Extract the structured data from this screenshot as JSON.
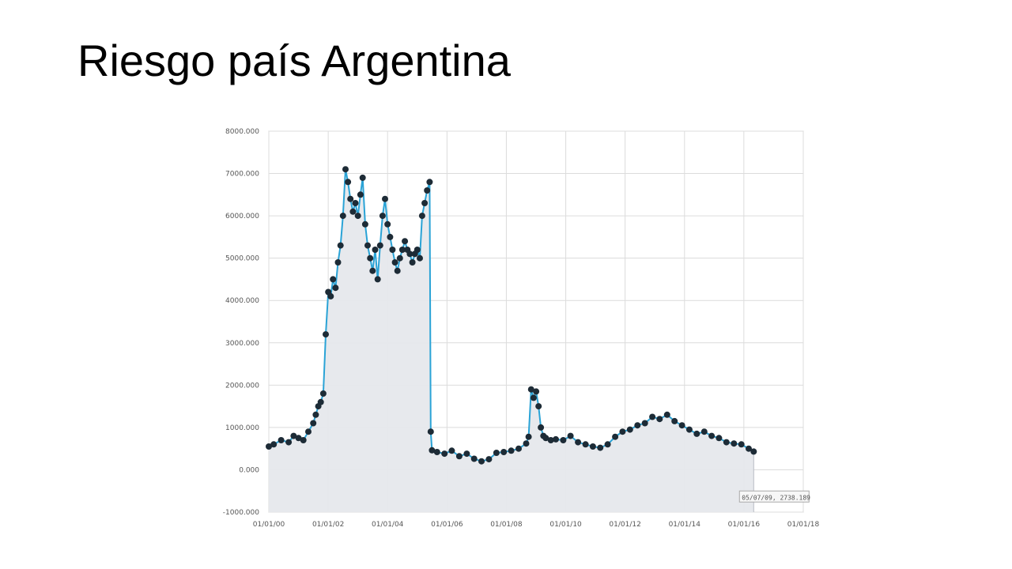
{
  "slide": {
    "title": "Riesgo país Argentina"
  },
  "chart_data": {
    "type": "line",
    "title": "",
    "xlabel": "",
    "ylabel": "",
    "area_fill": true,
    "grid": true,
    "legend": "none",
    "colors": {
      "line": "#2aa3d6",
      "marker": "#1d2b36",
      "fill": "#e6e8ec",
      "grid": "#dcdcdc"
    },
    "xlim": [
      "2000-01-01",
      "2018-01-01"
    ],
    "ylim": [
      -1000,
      8000
    ],
    "x_ticks": [
      "01/01/00",
      "01/01/02",
      "01/01/04",
      "01/01/06",
      "01/01/08",
      "01/01/10",
      "01/01/12",
      "01/01/14",
      "01/01/16",
      "01/01/18"
    ],
    "y_ticks": [
      "8000.000",
      "7000.000",
      "6000.000",
      "5000.000",
      "4000.000",
      "3000.000",
      "2000.000",
      "1000.000",
      "0.000",
      "-1000.000"
    ],
    "tooltip": "05/07/09, 2738.189",
    "series": [
      {
        "x": [
          "2000-01-01",
          "2000-03-01",
          "2000-06-01",
          "2000-09-01",
          "2000-11-01",
          "2001-01-01",
          "2001-03-01",
          "2001-05-01",
          "2001-07-01",
          "2001-08-01",
          "2001-09-01",
          "2001-10-01",
          "2001-11-01",
          "2001-12-01",
          "2002-01-01",
          "2002-02-01",
          "2002-03-01",
          "2002-04-01",
          "2002-05-01",
          "2002-06-01",
          "2002-07-01",
          "2002-08-01",
          "2002-09-01",
          "2002-10-01",
          "2002-11-01",
          "2002-12-01",
          "2003-01-01",
          "2003-02-01",
          "2003-03-01",
          "2003-04-01",
          "2003-05-01",
          "2003-06-01",
          "2003-07-01",
          "2003-08-01",
          "2003-09-01",
          "2003-10-01",
          "2003-11-01",
          "2003-12-01",
          "2004-01-01",
          "2004-02-01",
          "2004-03-01",
          "2004-04-01",
          "2004-05-01",
          "2004-06-01",
          "2004-07-01",
          "2004-08-01",
          "2004-09-01",
          "2004-10-01",
          "2004-11-01",
          "2004-12-01",
          "2005-01-01",
          "2005-02-01",
          "2005-03-01",
          "2005-04-01",
          "2005-05-01",
          "2005-06-01",
          "2005-06-15",
          "2005-07-01",
          "2005-09-01",
          "2005-12-01",
          "2006-03-01",
          "2006-06-01",
          "2006-09-01",
          "2006-12-01",
          "2007-03-01",
          "2007-06-01",
          "2007-09-01",
          "2007-12-01",
          "2008-03-01",
          "2008-06-01",
          "2008-09-01",
          "2008-10-01",
          "2008-11-01",
          "2008-12-01",
          "2009-01-01",
          "2009-02-01",
          "2009-03-01",
          "2009-04-01",
          "2009-05-01",
          "2009-07-01",
          "2009-09-01",
          "2009-12-01",
          "2010-03-01",
          "2010-06-01",
          "2010-09-01",
          "2010-12-01",
          "2011-03-01",
          "2011-06-01",
          "2011-09-01",
          "2011-12-01",
          "2012-03-01",
          "2012-06-01",
          "2012-09-01",
          "2012-12-01",
          "2013-03-01",
          "2013-06-01",
          "2013-09-01",
          "2013-12-01",
          "2014-03-01",
          "2014-06-01",
          "2014-09-01",
          "2014-12-01",
          "2015-03-01",
          "2015-06-01",
          "2015-09-01",
          "2015-12-01",
          "2016-03-01",
          "2016-05-01"
        ],
        "y": [
          550,
          600,
          700,
          650,
          800,
          750,
          700,
          900,
          1100,
          1300,
          1500,
          1600,
          1800,
          3200,
          4200,
          4100,
          4500,
          4300,
          4900,
          5300,
          6000,
          7100,
          6800,
          6400,
          6100,
          6300,
          6000,
          6500,
          6900,
          5800,
          5300,
          5000,
          4700,
          5200,
          4500,
          5300,
          6000,
          6400,
          5800,
          5500,
          5200,
          4900,
          4700,
          5000,
          5200,
          5400,
          5200,
          5100,
          4900,
          5100,
          5200,
          5000,
          6000,
          6300,
          6600,
          6800,
          900,
          460,
          420,
          380,
          450,
          320,
          380,
          260,
          200,
          250,
          400,
          420,
          450,
          500,
          620,
          780,
          1900,
          1700,
          1850,
          1500,
          1000,
          800,
          750,
          700,
          720,
          700,
          800,
          650,
          600,
          550,
          520,
          600,
          780,
          900,
          950,
          1050,
          1100,
          1250,
          1200,
          1300,
          1150,
          1050,
          950,
          850,
          900,
          800,
          750,
          650,
          620,
          600,
          500,
          430
        ]
      }
    ]
  }
}
